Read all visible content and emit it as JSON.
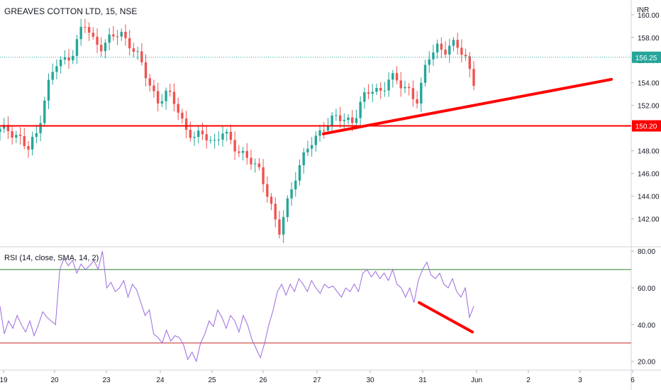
{
  "header": {
    "symbol_title": "GREAVES COTTON LTD, 15, NSE",
    "currency": "INR"
  },
  "rsi_panel": {
    "title": "RSI (14, close, SMA, 14, 2)"
  },
  "colors": {
    "up": "#26a69a",
    "down": "#ef5350",
    "drawing": "#ff0000",
    "rsi_line": "#9c6ade",
    "rsi_upper": "#2e7d32",
    "rsi_lower": "#c62828",
    "price_line": "#26a69a",
    "axis_text": "#131722",
    "grid": "#e0e3eb"
  },
  "chart_data": [
    {
      "type": "candlestick",
      "title": "GREAVES COTTON LTD, 15, NSE",
      "ylabel": "INR",
      "ylim": [
        139.6,
        161.3
      ],
      "x_ticks": [
        "19",
        "20",
        "23",
        "24",
        "25",
        "26",
        "27",
        "30",
        "31",
        "Jun",
        "2",
        "3",
        "6"
      ],
      "y_ticks": [
        142,
        144,
        146,
        148,
        150,
        152,
        154,
        156,
        158,
        160
      ],
      "y_tick_labels": [
        "142.00",
        "144.00",
        "146.00",
        "148.00",
        "150.00",
        "152.00",
        "154.00",
        "156.00",
        "158.00",
        "160.00"
      ],
      "last_price": 156.25,
      "last_price_label": "156.25",
      "horizontal_line": {
        "value": 150.2,
        "label": "150.20"
      },
      "trend_line": {
        "start": [
          "27",
          149.5
        ],
        "end": [
          "3",
          154.3
        ]
      },
      "close_path": [
        [
          "19",
          149.7
        ],
        [
          "19",
          149.9
        ],
        [
          "19",
          149.3
        ],
        [
          "20",
          148.0
        ],
        [
          "20",
          149.6
        ],
        [
          "20",
          153.5
        ],
        [
          "20",
          155.5
        ],
        [
          "20",
          156.0
        ],
        [
          "23",
          157.0
        ],
        [
          "23",
          159.2
        ],
        [
          "23",
          157.8
        ],
        [
          "23",
          157.3
        ],
        [
          "23",
          157.9
        ],
        [
          "23",
          158.4
        ],
        [
          "24",
          157.5
        ],
        [
          "24",
          156.0
        ],
        [
          "24",
          154.0
        ],
        [
          "24",
          152.5
        ],
        [
          "24",
          153.0
        ],
        [
          "24",
          152.0
        ],
        [
          "25",
          150.0
        ],
        [
          "25",
          149.0
        ],
        [
          "25",
          149.5
        ],
        [
          "25",
          148.8
        ],
        [
          "25",
          149.6
        ],
        [
          "25",
          148.5
        ],
        [
          "26",
          148.0
        ],
        [
          "26",
          147.0
        ],
        [
          "26",
          146.0
        ],
        [
          "26",
          144.0
        ],
        [
          "26",
          140.5
        ],
        [
          "26",
          143.5
        ],
        [
          "26",
          146.5
        ],
        [
          "27",
          148.0
        ],
        [
          "27",
          149.0
        ],
        [
          "27",
          150.5
        ],
        [
          "27",
          150.9
        ],
        [
          "27",
          150.6
        ],
        [
          "27",
          150.8
        ],
        [
          "30",
          152.5
        ],
        [
          "30",
          153.3
        ],
        [
          "30",
          153.4
        ],
        [
          "30",
          154.5
        ],
        [
          "30",
          153.8
        ],
        [
          "31",
          153.5
        ],
        [
          "31",
          152.3
        ],
        [
          "31",
          156.0
        ],
        [
          "31",
          157.4
        ],
        [
          "31",
          156.8
        ],
        [
          "31",
          157.3
        ],
        [
          "Jun",
          156.7
        ],
        [
          "Jun",
          154.0
        ]
      ]
    },
    {
      "type": "line",
      "title": "RSI (14, close, SMA, 14, 2)",
      "ylim": [
        16,
        82
      ],
      "y_ticks": [
        20,
        40,
        60,
        80
      ],
      "y_tick_labels": [
        "20.00",
        "40.00",
        "60.00",
        "80.00"
      ],
      "upper_band": 70,
      "lower_band": 30,
      "x_ticks": [
        "19",
        "20",
        "23",
        "24",
        "25",
        "26",
        "27",
        "30",
        "31",
        "Jun",
        "2",
        "3",
        "6"
      ],
      "series": [
        {
          "values": [
            50,
            35,
            42,
            38,
            45,
            40,
            36,
            42,
            34,
            40,
            47,
            44,
            42,
            40,
            70,
            76,
            72,
            75,
            68,
            73,
            70,
            72,
            75,
            70,
            80,
            60,
            63,
            58,
            60,
            64,
            55,
            62,
            59,
            52,
            45,
            48,
            35,
            33,
            30,
            37,
            31,
            34,
            33,
            29,
            21,
            25,
            20,
            30,
            35,
            42,
            39,
            48,
            44,
            38,
            45,
            42,
            36,
            45,
            40,
            32,
            27,
            22,
            30,
            40,
            48,
            58,
            62,
            56,
            62,
            58,
            65,
            62,
            58,
            64,
            60,
            57,
            62,
            60,
            61,
            58,
            55,
            60,
            58,
            62,
            58,
            68,
            70,
            66,
            69,
            65,
            68,
            64,
            70,
            62,
            60,
            55,
            60,
            52,
            64,
            70,
            74,
            67,
            65,
            68,
            62,
            60,
            65,
            58,
            55,
            60,
            44,
            50
          ]
        }
      ],
      "divergence_line": {
        "start": [
          "31",
          52
        ],
        "end": [
          "Jun",
          36
        ]
      }
    }
  ]
}
